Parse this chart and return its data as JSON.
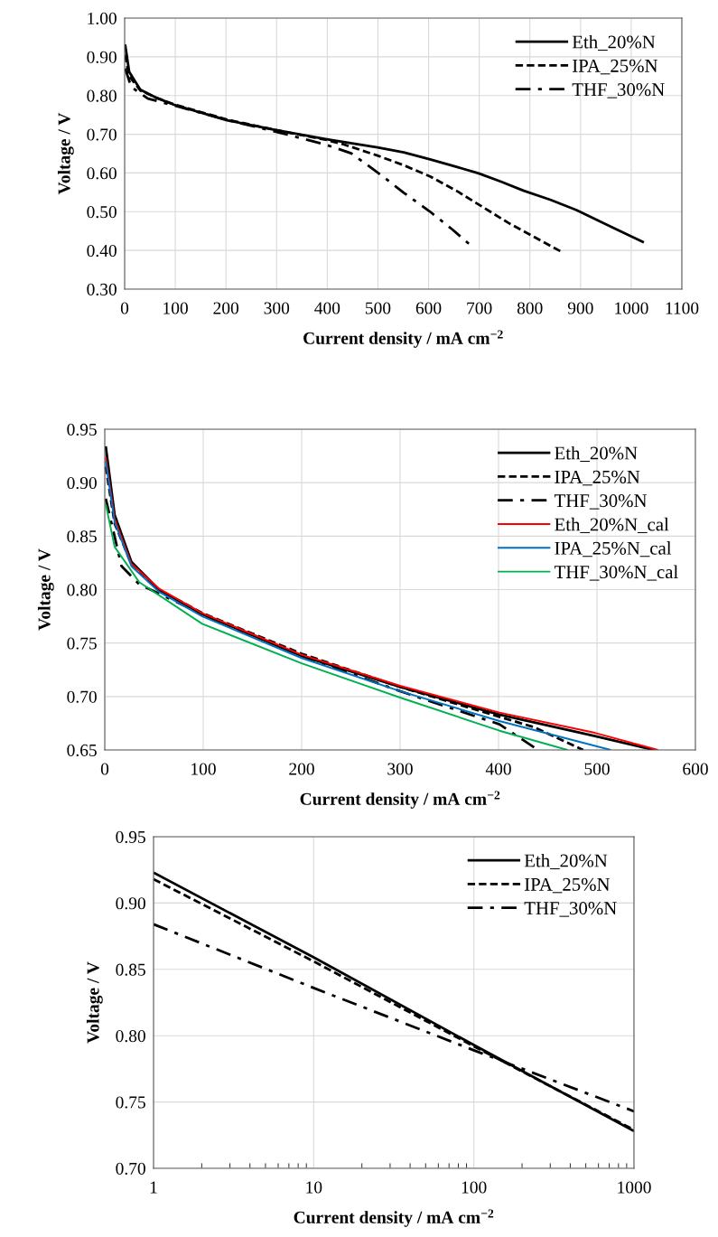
{
  "chart_data": [
    {
      "type": "line",
      "xlabel": "Current density / mA cm$^{−2}$",
      "ylabel": "Voltage / V",
      "xlim": [
        0,
        1100
      ],
      "xticks": [
        0,
        100,
        200,
        300,
        400,
        500,
        600,
        700,
        800,
        900,
        1000,
        1100
      ],
      "ylim": [
        0.3,
        1.0
      ],
      "yticks": [
        {
          "value": 0.3,
          "label": "0.30"
        },
        {
          "value": 0.4,
          "label": "0.40"
        },
        {
          "value": 0.5,
          "label": "0.50"
        },
        {
          "value": 0.6,
          "label": "0.60"
        },
        {
          "value": 0.7,
          "label": "0.70"
        },
        {
          "value": 0.8,
          "label": "0.80"
        },
        {
          "value": 0.9,
          "label": "0.90"
        },
        {
          "value": 1.0,
          "label": "1.00"
        }
      ],
      "grid": true,
      "legend": "top right",
      "marker": "none",
      "series": [
        {
          "name": "Eth_20%N",
          "color": "#000000",
          "line_style": "solid",
          "x": [
            1,
            9,
            31,
            61,
            98,
            202,
            298,
            399,
            499,
            551,
            603,
            655,
            699,
            744,
            788,
            840,
            892,
            952,
            1025
          ],
          "values": [
            0.932,
            0.861,
            0.815,
            0.795,
            0.776,
            0.736,
            0.711,
            0.687,
            0.666,
            0.653,
            0.635,
            0.616,
            0.599,
            0.577,
            0.554,
            0.531,
            0.504,
            0.466,
            0.421
          ]
        },
        {
          "name": "IPA_25%N",
          "color": "#000000",
          "line_style": "dashed",
          "x": [
            1,
            9,
            31,
            61,
            98,
            202,
            298,
            399,
            432,
            499,
            551,
            603,
            655,
            707,
            759,
            811,
            863
          ],
          "values": [
            0.905,
            0.85,
            0.813,
            0.795,
            0.777,
            0.738,
            0.711,
            0.685,
            0.674,
            0.645,
            0.62,
            0.591,
            0.554,
            0.512,
            0.47,
            0.433,
            0.396
          ]
        },
        {
          "name": "THF_30%N",
          "color": "#000000",
          "line_style": "dashdot",
          "x": [
            1,
            13,
            46,
            98,
            202,
            321,
            395,
            447,
            506,
            551,
            603,
            647,
            684
          ],
          "values": [
            0.87,
            0.822,
            0.792,
            0.774,
            0.737,
            0.699,
            0.674,
            0.651,
            0.595,
            0.549,
            0.5,
            0.454,
            0.412
          ]
        }
      ]
    },
    {
      "type": "line",
      "xlabel": "Current density / mA cm$^{−2}$",
      "ylabel": "Voltage / V",
      "xlim": [
        0,
        600
      ],
      "xticks": [
        0,
        100,
        200,
        300,
        400,
        500,
        600
      ],
      "ylim": [
        0.65,
        0.95
      ],
      "yticks": [
        {
          "value": 0.65,
          "label": "0.65"
        },
        {
          "value": 0.7,
          "label": "0.70"
        },
        {
          "value": 0.75,
          "label": "0.75"
        },
        {
          "value": 0.8,
          "label": "0.80"
        },
        {
          "value": 0.85,
          "label": "0.85"
        },
        {
          "value": 0.9,
          "label": "0.90"
        },
        {
          "value": 0.95,
          "label": "0.95"
        }
      ],
      "grid": true,
      "legend": "top right",
      "marker": "none",
      "series": [
        {
          "name": "Eth_20%N",
          "color": "#000000",
          "line_style": "solid",
          "x": [
            1,
            10,
            27,
            55,
            99,
            200,
            300,
            401,
            498,
            558
          ],
          "values": [
            0.934,
            0.87,
            0.826,
            0.8,
            0.777,
            0.738,
            0.709,
            0.683,
            0.663,
            0.65
          ]
        },
        {
          "name": "IPA_25%N",
          "color": "#000000",
          "line_style": "dashed",
          "x": [
            1,
            10,
            27,
            55,
            99,
            200,
            300,
            401,
            437,
            486
          ],
          "values": [
            0.915,
            0.862,
            0.824,
            0.8,
            0.778,
            0.74,
            0.709,
            0.681,
            0.671,
            0.65
          ]
        },
        {
          "name": "THF_30%N",
          "color": "#000000",
          "line_style": "dashdot",
          "x": [
            1,
            17,
            35,
            99,
            200,
            300,
            401,
            440
          ],
          "values": [
            0.885,
            0.822,
            0.805,
            0.777,
            0.738,
            0.705,
            0.674,
            0.65
          ]
        },
        {
          "name": "Eth_20%N_cal",
          "color": "#ff0000",
          "line_style": "solid",
          "x": [
            1,
            10,
            27,
            55,
            99,
            200,
            300,
            401,
            498,
            562
          ],
          "values": [
            0.924,
            0.866,
            0.824,
            0.801,
            0.778,
            0.739,
            0.71,
            0.685,
            0.666,
            0.65
          ]
        },
        {
          "name": "IPA_25%N_cal",
          "color": "#0070c0",
          "line_style": "solid",
          "x": [
            1,
            10,
            27,
            55,
            99,
            200,
            300,
            401,
            514
          ],
          "values": [
            0.92,
            0.863,
            0.822,
            0.798,
            0.775,
            0.736,
            0.705,
            0.677,
            0.65
          ]
        },
        {
          "name": "THF_30%N_cal",
          "color": "#00b050",
          "line_style": "solid",
          "x": [
            1,
            10,
            35,
            99,
            200,
            300,
            401,
            470
          ],
          "values": [
            0.88,
            0.84,
            0.807,
            0.768,
            0.731,
            0.699,
            0.668,
            0.65
          ]
        }
      ]
    },
    {
      "type": "line",
      "xlabel": "Current density / mA cm$^{−2}$",
      "ylabel": "Voltage / V",
      "log": "x",
      "xlim": [
        1,
        1000
      ],
      "xticks": [
        1,
        10,
        100,
        1000
      ],
      "ylim": [
        0.7,
        0.95
      ],
      "yticks": [
        {
          "value": 0.7,
          "label": "0.70"
        },
        {
          "value": 0.75,
          "label": "0.75"
        },
        {
          "value": 0.8,
          "label": "0.80"
        },
        {
          "value": 0.85,
          "label": "0.85"
        },
        {
          "value": 0.9,
          "label": "0.90"
        },
        {
          "value": 0.95,
          "label": "0.95"
        }
      ],
      "grid": true,
      "legend": "top right",
      "marker": "none",
      "series": [
        {
          "name": "Eth_20%N",
          "color": "#000000",
          "line_style": "solid",
          "x": [
            1,
            10,
            100,
            1000
          ],
          "values": [
            0.923,
            0.859,
            0.793,
            0.728
          ]
        },
        {
          "name": "IPA_25%N",
          "color": "#000000",
          "line_style": "dashed",
          "x": [
            1,
            10,
            100,
            1000
          ],
          "values": [
            0.918,
            0.856,
            0.792,
            0.729
          ]
        },
        {
          "name": "THF_30%N",
          "color": "#000000",
          "line_style": "dashdot",
          "x": [
            1,
            10,
            100,
            1000
          ],
          "values": [
            0.884,
            0.836,
            0.789,
            0.743
          ]
        }
      ]
    }
  ]
}
